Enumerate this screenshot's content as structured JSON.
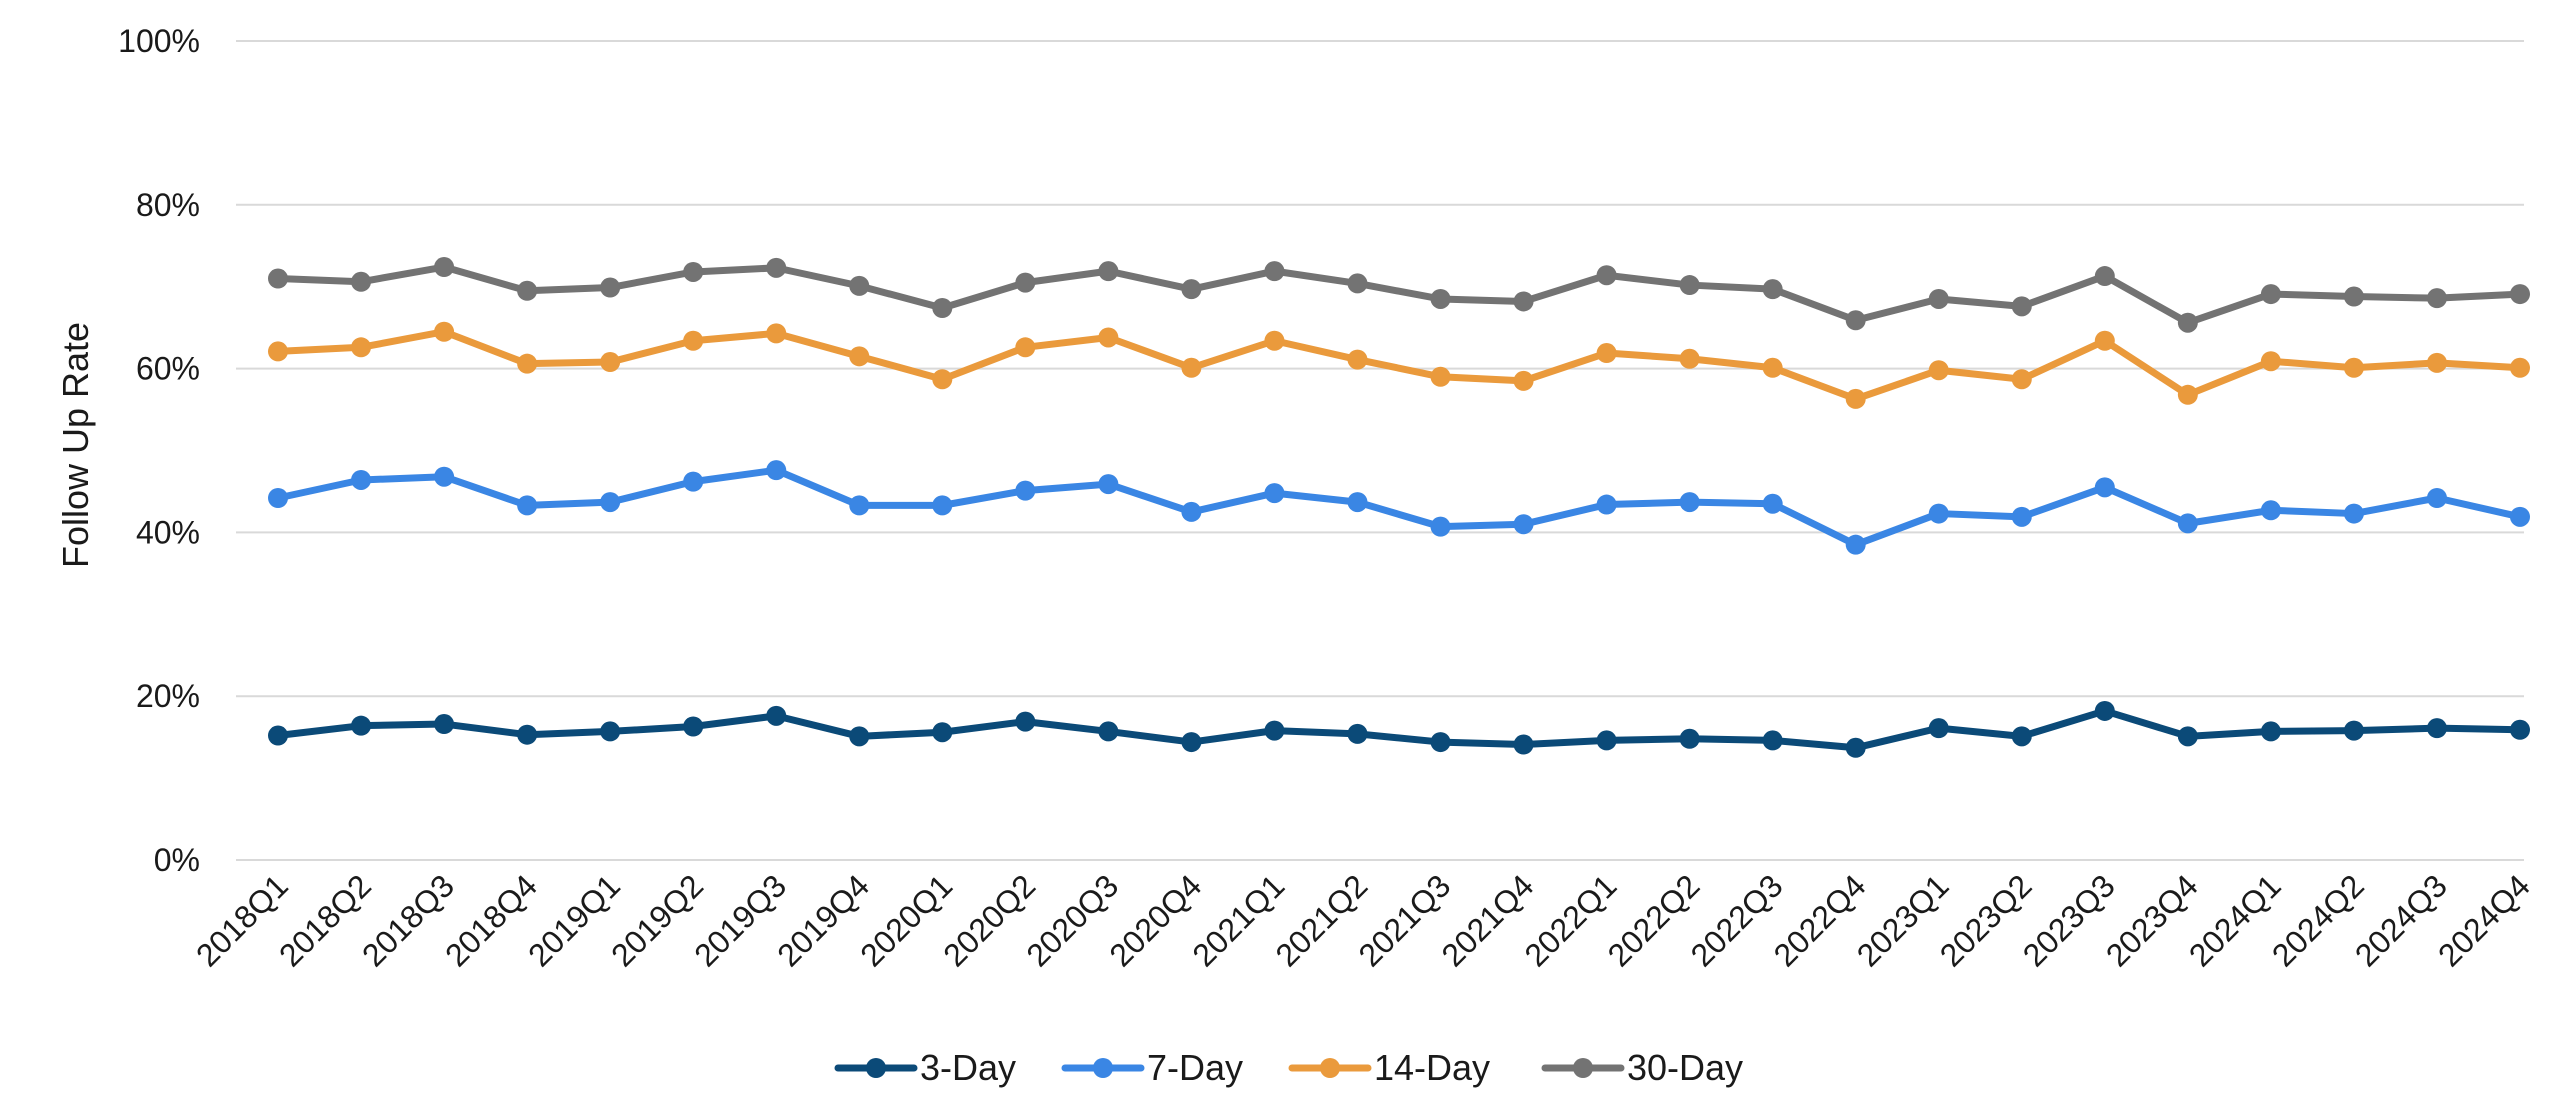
{
  "chart_data": {
    "type": "line",
    "title": "",
    "xlabel": "",
    "ylabel": "Follow Up Rate",
    "ylim": [
      0,
      100
    ],
    "yticks": [
      "0%",
      "20%",
      "40%",
      "60%",
      "80%",
      "100%"
    ],
    "ytick_values": [
      0,
      20,
      40,
      60,
      80,
      100
    ],
    "grid": true,
    "legend_position": "bottom",
    "categories": [
      "2018Q1",
      "2018Q2",
      "2018Q3",
      "2018Q4",
      "2019Q1",
      "2019Q2",
      "2019Q3",
      "2019Q4",
      "2020Q1",
      "2020Q2",
      "2020Q3",
      "2020Q4",
      "2021Q1",
      "2021Q2",
      "2021Q3",
      "2021Q4",
      "2022Q1",
      "2022Q2",
      "2022Q3",
      "2022Q4",
      "2023Q1",
      "2023Q2",
      "2023Q3",
      "2023Q4",
      "2024Q1",
      "2024Q2",
      "2024Q3",
      "2024Q4"
    ],
    "series": [
      {
        "name": "3-Day",
        "color": "#0b4a78",
        "values": [
          15.2,
          16.4,
          16.6,
          15.3,
          15.7,
          16.3,
          17.6,
          15.1,
          15.6,
          16.9,
          15.7,
          14.4,
          15.8,
          15.4,
          14.4,
          14.1,
          14.6,
          14.8,
          14.6,
          13.7,
          16.1,
          15.1,
          18.2,
          15.1,
          15.7,
          15.8,
          16.1,
          15.9
        ]
      },
      {
        "name": "7-Day",
        "color": "#3a86e4",
        "values": [
          44.2,
          46.4,
          46.8,
          43.3,
          43.7,
          46.2,
          47.6,
          43.3,
          43.3,
          45.1,
          45.9,
          42.5,
          44.8,
          43.7,
          40.7,
          41.0,
          43.4,
          43.7,
          43.5,
          38.5,
          42.3,
          41.9,
          45.5,
          41.1,
          42.7,
          42.3,
          44.2,
          41.9
        ]
      },
      {
        "name": "14-Day",
        "color": "#ea9a3c",
        "values": [
          62.1,
          62.6,
          64.5,
          60.6,
          60.8,
          63.4,
          64.3,
          61.5,
          58.7,
          62.6,
          63.8,
          60.1,
          63.4,
          61.1,
          59.0,
          58.5,
          61.9,
          61.2,
          60.1,
          56.3,
          59.8,
          58.7,
          63.4,
          56.8,
          60.9,
          60.1,
          60.7,
          60.1
        ]
      },
      {
        "name": "30-Day",
        "color": "#737373",
        "values": [
          71.0,
          70.6,
          72.4,
          69.5,
          69.9,
          71.8,
          72.3,
          70.1,
          67.4,
          70.5,
          71.9,
          69.7,
          71.9,
          70.4,
          68.5,
          68.2,
          71.4,
          70.2,
          69.7,
          65.9,
          68.5,
          67.6,
          71.3,
          65.6,
          69.1,
          68.8,
          68.6,
          69.1
        ]
      }
    ]
  }
}
